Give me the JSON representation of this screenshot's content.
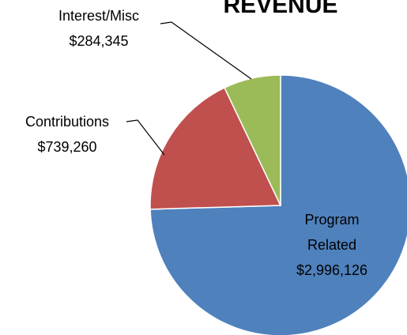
{
  "chart_data": {
    "type": "pie",
    "title": "REVENUE",
    "categories": [
      "Program Related",
      "Contributions",
      "Interest/Misc"
    ],
    "values": [
      2996126,
      739260,
      284345
    ],
    "value_labels": [
      "$2,996,126",
      "$739,260",
      "$284,345"
    ],
    "colors": [
      "#4f81bd",
      "#c0504d",
      "#9bbb59"
    ]
  }
}
